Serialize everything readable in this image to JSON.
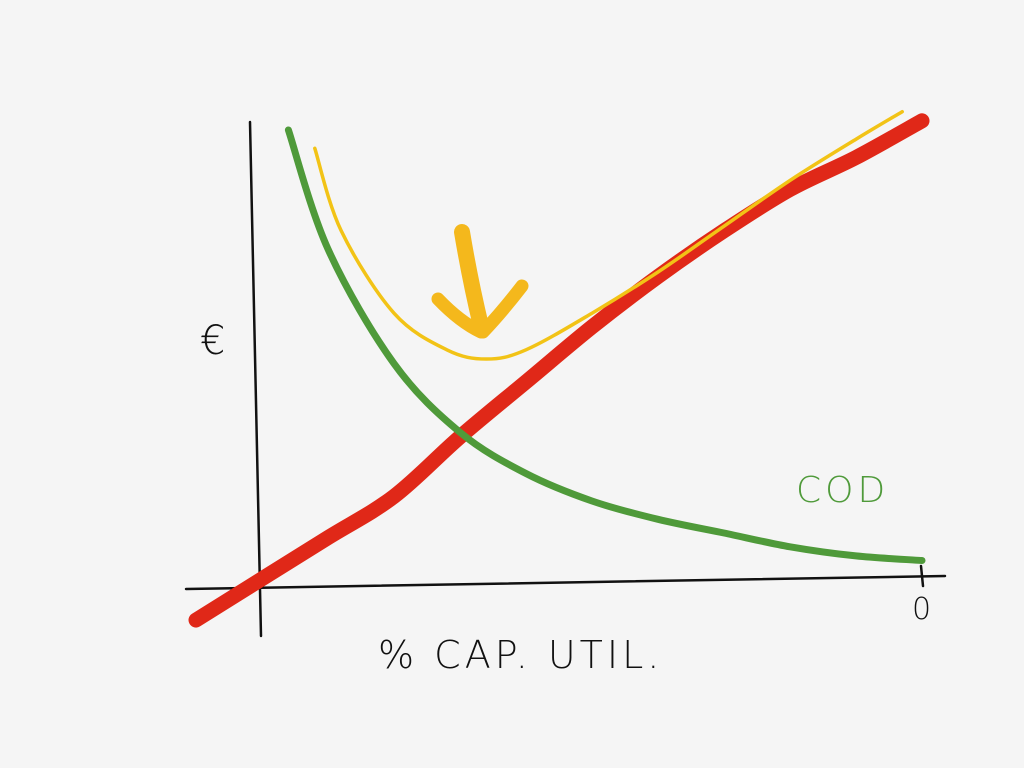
{
  "chart_data": {
    "type": "line",
    "xlabel": "% CAP. UTIL.",
    "ylabel": "€",
    "x_tick_labels": [
      "0"
    ],
    "annotations": [
      "COD"
    ],
    "grid": false,
    "legend": "none",
    "series": [
      {
        "name": "COD",
        "color": "#4f9a3a",
        "x": [
          0.04,
          0.1,
          0.2,
          0.3,
          0.4,
          0.5,
          0.6,
          0.7,
          0.8,
          0.9,
          1.0
        ],
        "y": [
          1.0,
          0.74,
          0.49,
          0.34,
          0.25,
          0.19,
          0.15,
          0.12,
          0.09,
          0.07,
          0.06
        ]
      },
      {
        "color": "#e02818",
        "x": [
          -0.1,
          0.0,
          0.1,
          0.2,
          0.3,
          0.4,
          0.5,
          0.6,
          0.7,
          0.8,
          0.9,
          1.0
        ],
        "y": [
          -0.07,
          0.02,
          0.11,
          0.2,
          0.33,
          0.45,
          0.57,
          0.68,
          0.78,
          0.87,
          0.94,
          1.02
        ]
      },
      {
        "color": "#f2c316",
        "x": [
          0.08,
          0.12,
          0.2,
          0.28,
          0.34,
          0.4,
          0.5,
          0.6,
          0.7,
          0.8,
          0.9,
          0.97
        ],
        "y": [
          0.96,
          0.78,
          0.6,
          0.52,
          0.5,
          0.52,
          0.6,
          0.69,
          0.79,
          0.89,
          0.98,
          1.04
        ]
      }
    ]
  },
  "arrow": {
    "icon": "down-arrow-icon",
    "color": "#f4b81c"
  }
}
